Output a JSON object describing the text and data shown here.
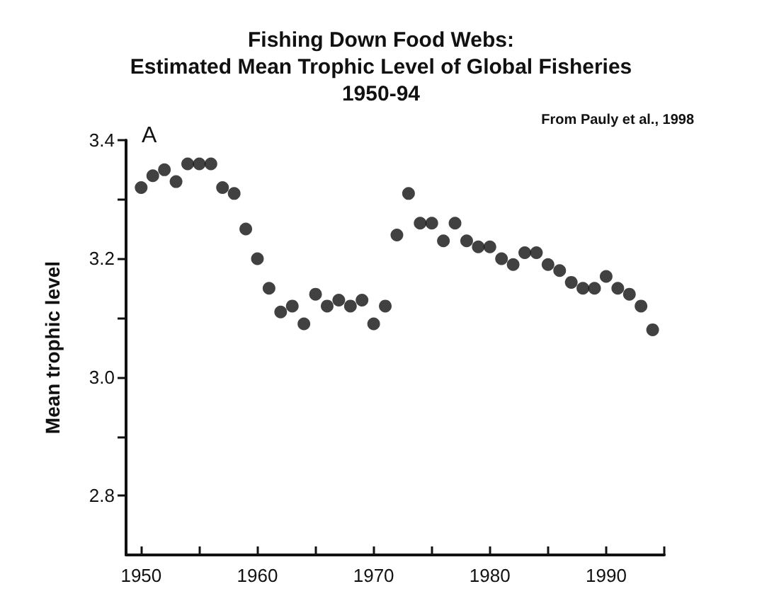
{
  "chart_data": {
    "type": "scatter",
    "title": "Fishing Down Food Webs:\nEstimated Mean Trophic Level of Global Fisheries\n1950-94",
    "ylabel": "Mean trophic level",
    "annotations": [
      "A",
      "From Pauly et al., 1998"
    ],
    "x": [
      1950,
      1951,
      1952,
      1953,
      1954,
      1955,
      1956,
      1957,
      1958,
      1959,
      1960,
      1961,
      1962,
      1963,
      1964,
      1965,
      1966,
      1967,
      1968,
      1969,
      1970,
      1971,
      1972,
      1973,
      1974,
      1975,
      1976,
      1977,
      1978,
      1979,
      1980,
      1981,
      1982,
      1983,
      1984,
      1985,
      1986,
      1987,
      1988,
      1989,
      1990,
      1991,
      1992,
      1993,
      1994
    ],
    "series": [
      {
        "color": "#111111",
        "values": [
          3.32,
          3.34,
          3.35,
          3.33,
          3.36,
          3.36,
          3.36,
          3.32,
          3.31,
          3.25,
          3.2,
          3.15,
          3.11,
          3.12,
          3.09,
          3.14,
          3.12,
          3.13,
          3.12,
          3.13,
          3.09,
          3.12,
          3.24,
          3.31,
          3.26,
          3.26,
          3.23,
          3.26,
          3.23,
          3.22,
          3.22,
          3.2,
          3.19,
          3.21,
          3.21,
          3.19,
          3.18,
          3.16,
          3.15,
          3.15,
          3.17,
          3.15,
          3.14,
          3.12,
          3.08
        ]
      }
    ],
    "xlim": [
      1948.7,
      1995
    ],
    "xticks": [
      1950,
      {
        "value": 1955,
        "label": null
      },
      1960,
      {
        "value": 1965,
        "label": null
      },
      1970,
      {
        "value": 1975,
        "label": null
      },
      1980,
      {
        "value": 1985,
        "label": null
      },
      1990,
      {
        "value": 1995,
        "label": null
      }
    ],
    "ylim": [
      2.7,
      3.4
    ],
    "yticks": [
      {
        "value": 2.8,
        "label": "2.8"
      },
      {
        "value": 2.9,
        "label": null
      },
      {
        "value": 3.0,
        "label": "3.0"
      },
      {
        "value": 3.1,
        "label": null
      },
      {
        "value": 3.2,
        "label": "3.2"
      },
      {
        "value": 3.3,
        "label": null
      },
      {
        "value": 3.4,
        "label": "3.4"
      }
    ],
    "grid": false,
    "marker": "circle"
  }
}
